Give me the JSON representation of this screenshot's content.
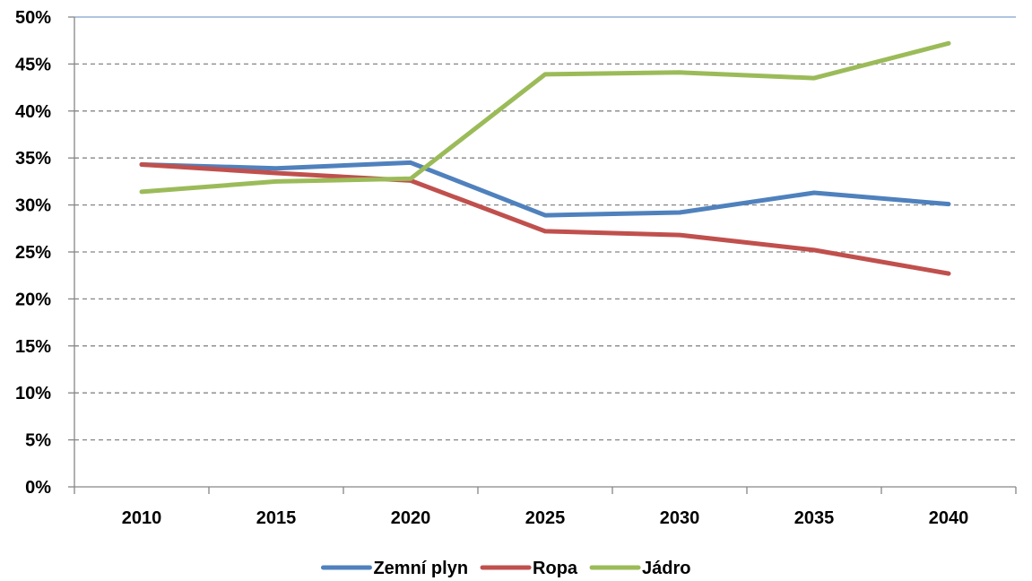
{
  "chart_data": {
    "type": "line",
    "categories": [
      "2010",
      "2015",
      "2020",
      "2025",
      "2030",
      "2035",
      "2040"
    ],
    "series": [
      {
        "name": "Zemní plyn",
        "color": "#4F81BD",
        "values": [
          34.3,
          33.9,
          34.5,
          28.9,
          29.2,
          31.3,
          30.1
        ]
      },
      {
        "name": "Ropa",
        "color": "#C0504D",
        "values": [
          34.3,
          33.4,
          32.6,
          27.2,
          26.8,
          25.2,
          22.7
        ]
      },
      {
        "name": "Jádro",
        "color": "#9BBB59",
        "values": [
          31.4,
          32.5,
          32.8,
          43.9,
          44.1,
          43.5,
          47.2
        ]
      }
    ],
    "ylim": [
      0,
      50
    ],
    "yticks": [
      0,
      5,
      10,
      15,
      20,
      25,
      30,
      35,
      40,
      45,
      50
    ],
    "ytick_labels": [
      "0%",
      "5%",
      "10%",
      "15%",
      "20%",
      "25%",
      "30%",
      "35%",
      "40%",
      "45%",
      "50%"
    ],
    "title": "",
    "xlabel": "",
    "ylabel": "",
    "grid": "horizontal dashed",
    "legend_position": "bottom"
  }
}
